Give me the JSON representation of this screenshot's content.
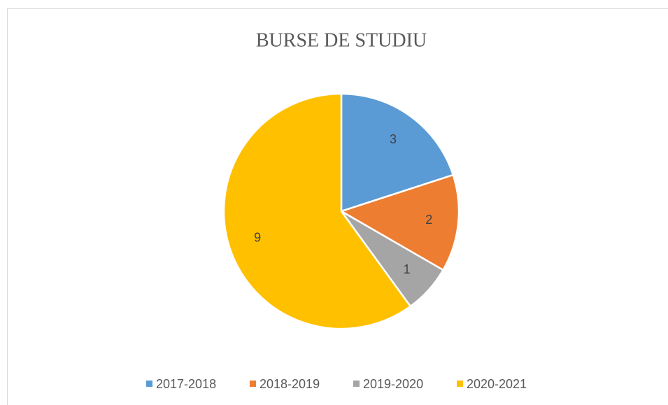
{
  "chart_data": {
    "type": "pie",
    "title": "BURSE DE STUDIU",
    "categories": [
      "2017-2018",
      "2018-2019",
      "2019-2020",
      "2020-2021"
    ],
    "values": [
      3,
      2,
      1,
      9
    ],
    "colors": [
      "#5b9bd5",
      "#ed7d31",
      "#a5a5a5",
      "#ffc000"
    ],
    "legend": "bottom"
  }
}
